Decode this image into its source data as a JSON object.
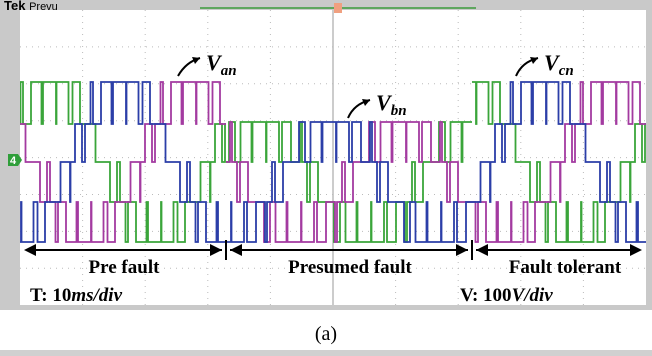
{
  "header": {
    "brand": "Tek",
    "status": "Prevu"
  },
  "channel_marker": "4",
  "signals": [
    {
      "symbol": "V",
      "subscript": "an"
    },
    {
      "symbol": "V",
      "subscript": "bn"
    },
    {
      "symbol": "V",
      "subscript": "cn"
    }
  ],
  "regions": [
    "Pre fault",
    "Presumed fault",
    "Fault tolerant"
  ],
  "time_scale": {
    "label": "T: 10",
    "unit": "ms/div"
  },
  "volt_scale": {
    "label": "V: 100",
    "unit": "V/div"
  },
  "caption": "(a)"
}
